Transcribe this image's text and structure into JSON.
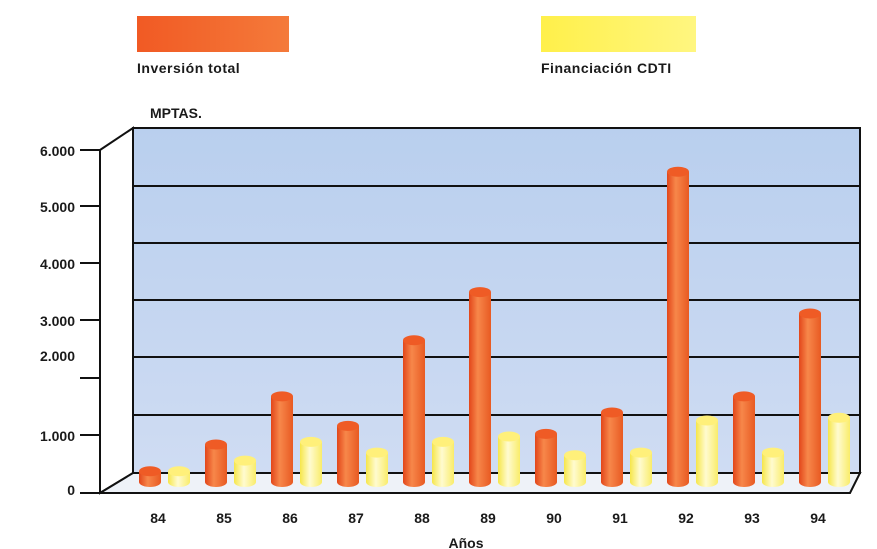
{
  "chart_data": {
    "type": "bar",
    "title": "",
    "ylabel": "MPTAS.",
    "xlabel": "Años",
    "categories": [
      "84",
      "85",
      "86",
      "87",
      "88",
      "89",
      "90",
      "91",
      "92",
      "93",
      "94"
    ],
    "series": [
      {
        "name": "Inversión total",
        "color": "#f26522",
        "values": [
          200,
          700,
          1600,
          1050,
          2650,
          3550,
          900,
          1300,
          5800,
          1600,
          3150
        ]
      },
      {
        "name": "Financiación CDTI",
        "color": "#fff066",
        "values": [
          200,
          400,
          750,
          550,
          750,
          850,
          500,
          550,
          1150,
          550,
          1200
        ]
      }
    ],
    "y_ticks": [
      "0",
      "1.000",
      "2.000",
      "3.000",
      "4.000",
      "5.000",
      "6.000"
    ],
    "grid": true,
    "legend_position": "top"
  }
}
